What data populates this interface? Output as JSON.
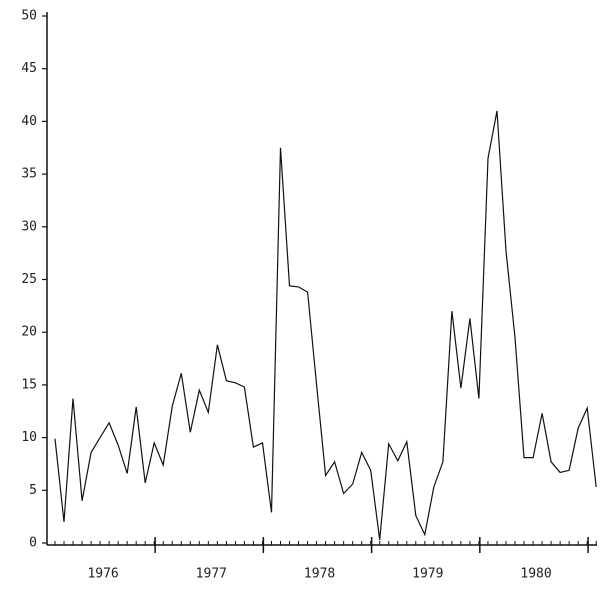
{
  "chart_data": {
    "type": "line",
    "categories": [
      null,
      null,
      null,
      null,
      null,
      "1976",
      null,
      null,
      null,
      null,
      null,
      null,
      null,
      null,
      null,
      null,
      null,
      "1977",
      null,
      null,
      null,
      null,
      null,
      null,
      null,
      null,
      null,
      null,
      null,
      "1978",
      null,
      null,
      null,
      null,
      null,
      null,
      null,
      null,
      null,
      null,
      null,
      "1979",
      null,
      null,
      null,
      null,
      null,
      null,
      null,
      null,
      null,
      null,
      null,
      "1980",
      null,
      null,
      null,
      null,
      null,
      null,
      null
    ],
    "values": [
      9.9,
      2,
      13.7,
      4,
      8.6,
      10,
      11.4,
      9.3,
      6.6,
      12.9,
      5.7,
      9.5,
      7.4,
      13,
      16.1,
      10.5,
      14.5,
      12.4,
      18.8,
      15.4,
      15.2,
      14.8,
      9.1,
      9.5,
      2.9,
      37.5,
      24.4,
      24.3,
      23.8,
      15,
      6.4,
      7.7,
      4.7,
      5.6,
      8.6,
      6.9,
      0.3,
      9.4,
      7.8,
      9.6,
      2.6,
      0.8,
      5.3,
      7.7,
      22,
      14.7,
      21.3,
      13.7,
      36.5,
      41,
      27.7,
      19.5,
      8.1,
      8.1,
      12.3,
      7.7,
      6.7,
      6.9,
      10.9,
      12.8,
      5.3
    ],
    "color": "#111111",
    "ylim": [
      0,
      50
    ],
    "yticks": [
      0,
      5,
      10,
      15,
      20,
      25,
      30,
      35,
      40,
      45,
      50
    ],
    "grid": false
  }
}
